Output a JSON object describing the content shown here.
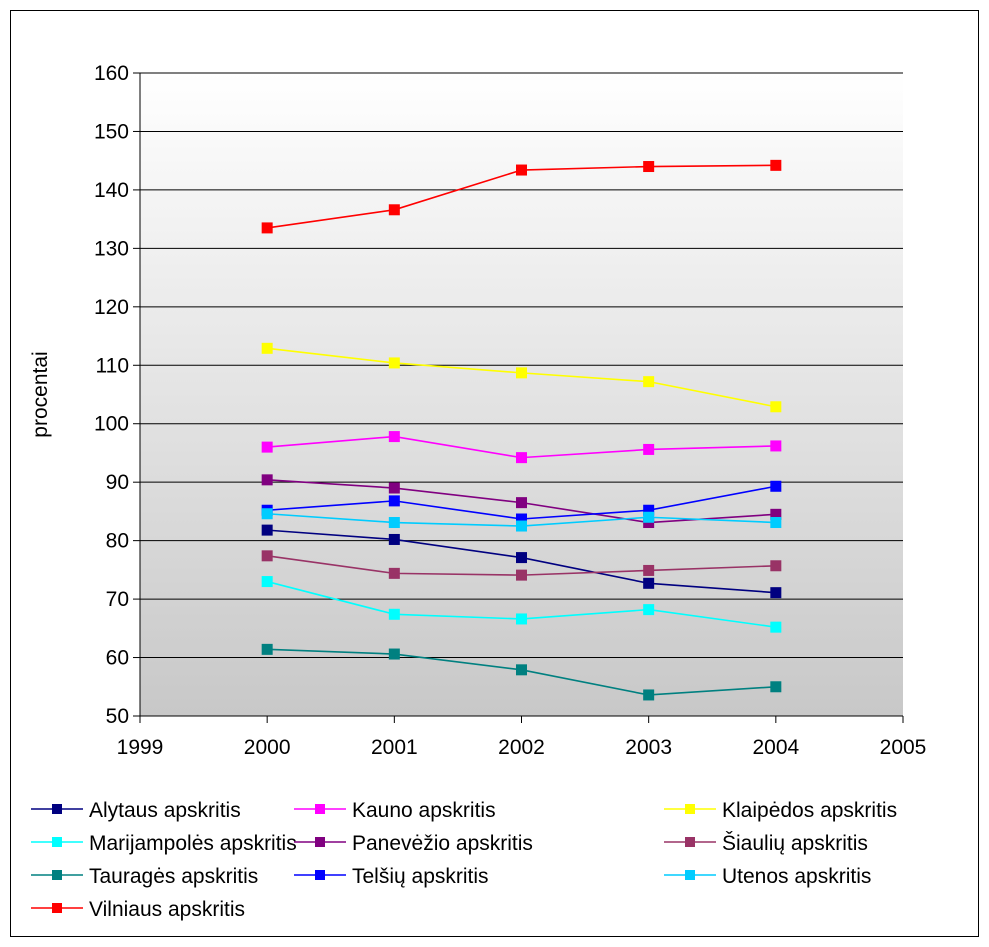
{
  "chart_data": {
    "type": "line",
    "title": "",
    "xlabel": "",
    "ylabel": "procentai",
    "xlim": [
      1999,
      2005
    ],
    "ylim": [
      50,
      160
    ],
    "x_ticks": [
      1999,
      2000,
      2001,
      2002,
      2003,
      2004,
      2005
    ],
    "y_ticks": [
      50,
      60,
      70,
      80,
      90,
      100,
      110,
      120,
      130,
      140,
      150,
      160
    ],
    "grid": "horizontal",
    "legend_position": "bottom",
    "x": [
      2000,
      2001,
      2002,
      2003,
      2004
    ],
    "series": [
      {
        "name": "Alytaus apskritis",
        "color": "#000080",
        "values": [
          81.8,
          80.2,
          77.1,
          72.7,
          71.1
        ]
      },
      {
        "name": "Kauno apskritis",
        "color": "#FF00FF",
        "values": [
          96.0,
          97.8,
          94.2,
          95.6,
          96.2
        ]
      },
      {
        "name": "Klaipėdos apskritis",
        "color": "#FFFF00",
        "values": [
          112.9,
          110.4,
          108.7,
          107.2,
          102.9
        ]
      },
      {
        "name": "Marijampolės apskritis",
        "color": "#00FFFF",
        "values": [
          73.0,
          67.4,
          66.6,
          68.2,
          65.2
        ]
      },
      {
        "name": "Panevėžio apskritis",
        "color": "#800080",
        "values": [
          90.4,
          89.0,
          86.5,
          83.1,
          84.5
        ]
      },
      {
        "name": "Šiaulių apskritis",
        "color": "#993366",
        "values": [
          77.4,
          74.4,
          74.1,
          74.9,
          75.7
        ]
      },
      {
        "name": "Tauragės apskritis",
        "color": "#008080",
        "values": [
          61.4,
          60.6,
          57.9,
          53.6,
          55.0
        ]
      },
      {
        "name": "Telšių apskritis",
        "color": "#0000FF",
        "values": [
          85.2,
          86.8,
          83.7,
          85.2,
          89.3
        ]
      },
      {
        "name": "Utenos apskritis",
        "color": "#00CCFF",
        "values": [
          84.6,
          83.1,
          82.5,
          84.0,
          83.1
        ]
      },
      {
        "name": "Vilniaus apskritis",
        "color": "#FF0000",
        "values": [
          133.5,
          136.6,
          143.4,
          144.0,
          144.2
        ]
      }
    ]
  }
}
